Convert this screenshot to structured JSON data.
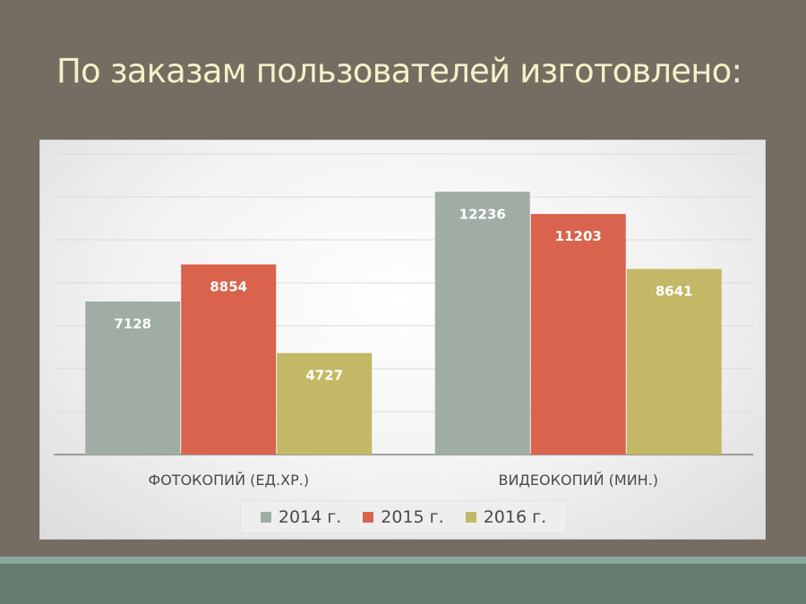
{
  "slide": {
    "title": "По заказам пользователей изготовлено:"
  },
  "colors": {
    "background": "#756c62",
    "title": "#f5f0c8",
    "bottom_band": "#657b70",
    "bottom_stripe": "#8aa89b"
  },
  "chart_data": {
    "type": "bar",
    "title": "",
    "xlabel": "",
    "ylabel": "",
    "categories": [
      "ФОТОКОПИЙ (ЕД.ХР.)",
      "ВИДЕОКОПИЙ (МИН.)"
    ],
    "series": [
      {
        "name": "2014 г.",
        "values": [
          7128,
          12236
        ],
        "color": "#9fada4"
      },
      {
        "name": "2015 г.",
        "values": [
          8854,
          11203
        ],
        "color": "#d9634d"
      },
      {
        "name": "2016 г.",
        "values": [
          4727,
          8641
        ],
        "color": "#c3b865"
      }
    ],
    "ylim": [
      0,
      14000
    ],
    "grid": true,
    "legend_position": "bottom",
    "data_labels": true
  }
}
